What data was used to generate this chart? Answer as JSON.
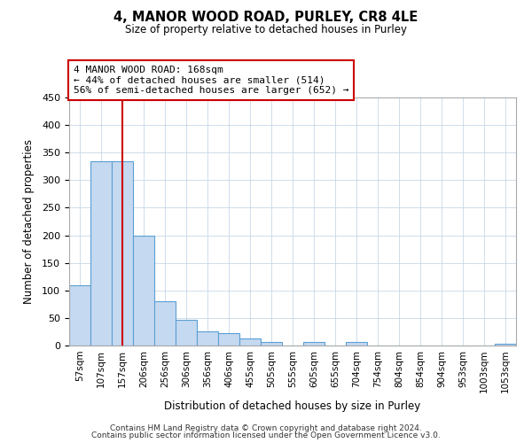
{
  "title": "4, MANOR WOOD ROAD, PURLEY, CR8 4LE",
  "subtitle": "Size of property relative to detached houses in Purley",
  "xlabel": "Distribution of detached houses by size in Purley",
  "ylabel": "Number of detached properties",
  "bar_labels": [
    "57sqm",
    "107sqm",
    "157sqm",
    "206sqm",
    "256sqm",
    "306sqm",
    "356sqm",
    "406sqm",
    "455sqm",
    "505sqm",
    "555sqm",
    "605sqm",
    "655sqm",
    "704sqm",
    "754sqm",
    "804sqm",
    "854sqm",
    "904sqm",
    "953sqm",
    "1003sqm",
    "1053sqm"
  ],
  "bar_values": [
    109,
    335,
    335,
    200,
    81,
    46,
    25,
    22,
    13,
    7,
    0,
    7,
    0,
    7,
    0,
    0,
    0,
    0,
    0,
    0,
    3
  ],
  "bar_color": "#c5d9f0",
  "bar_edge_color": "#5a9fd4",
  "vline_x": 2,
  "vline_color": "#cc0000",
  "ylim": [
    0,
    450
  ],
  "yticks": [
    0,
    50,
    100,
    150,
    200,
    250,
    300,
    350,
    400,
    450
  ],
  "annotation_title": "4 MANOR WOOD ROAD: 168sqm",
  "annotation_line1": "← 44% of detached houses are smaller (514)",
  "annotation_line2": "56% of semi-detached houses are larger (652) →",
  "footer1": "Contains HM Land Registry data © Crown copyright and database right 2024.",
  "footer2": "Contains public sector information licensed under the Open Government Licence v3.0.",
  "background_color": "#ffffff",
  "grid_color": "#c8d8e8"
}
